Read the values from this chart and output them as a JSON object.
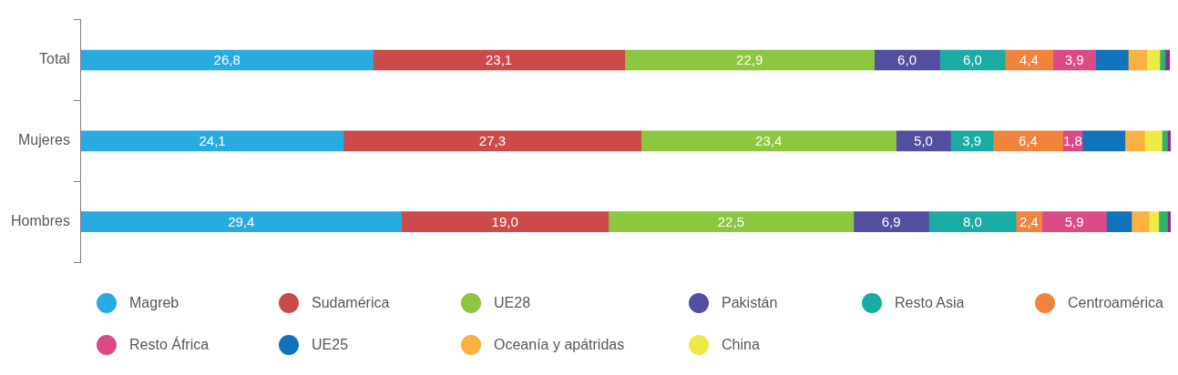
{
  "chart_data": {
    "type": "bar",
    "orientation": "horizontal",
    "stacked": true,
    "legend": "bottom",
    "categories": [
      "Total",
      "Mujeres",
      "Hombres"
    ],
    "series": [
      {
        "name": "Magreb",
        "color": "#29abe2",
        "values": [
          26.8,
          24.1,
          29.4
        ],
        "value_labels": [
          "26,8",
          "24,1",
          "29,4"
        ]
      },
      {
        "name": "Sudamérica",
        "color": "#cc4a4a",
        "values": [
          23.1,
          27.3,
          19.0
        ],
        "value_labels": [
          "23,1",
          "27,3",
          "19,0"
        ]
      },
      {
        "name": "UE28",
        "color": "#8dc63f",
        "values": [
          22.9,
          23.4,
          22.5
        ],
        "value_labels": [
          "22,9",
          "23,4",
          "22,5"
        ]
      },
      {
        "name": "Pakistán",
        "color": "#524ea0",
        "values": [
          6.0,
          5.0,
          6.9
        ],
        "value_labels": [
          "6,0",
          "5,0",
          "6,9"
        ]
      },
      {
        "name": "Resto Asia",
        "color": "#1aaba5",
        "values": [
          6.0,
          3.9,
          8.0
        ],
        "value_labels": [
          "6,0",
          "3,9",
          "8,0"
        ]
      },
      {
        "name": "Centroamérica",
        "color": "#f0843c",
        "values": [
          4.4,
          6.4,
          2.4
        ],
        "value_labels": [
          "4,4",
          "6,4",
          "2,4"
        ]
      },
      {
        "name": "Resto África",
        "color": "#dc4a86",
        "values": [
          3.9,
          1.8,
          5.9
        ],
        "value_labels": [
          "3,9",
          "1,8",
          "5,9"
        ]
      },
      {
        "name": "UE25",
        "color": "#1173bc",
        "values": [
          3.0,
          3.9,
          2.3
        ]
      },
      {
        "name": "Oceanía y apátridas",
        "color": "#fbb040",
        "values": [
          1.7,
          1.8,
          1.6
        ]
      },
      {
        "name": "China",
        "color": "#eeea45",
        "values": [
          1.2,
          1.6,
          0.9
        ]
      },
      {
        "color": "#2db36e",
        "values": [
          0.5,
          0.5,
          0.8
        ]
      },
      {
        "color": "#92278f",
        "values": [
          0.4,
          0.3,
          0.3
        ]
      }
    ]
  }
}
